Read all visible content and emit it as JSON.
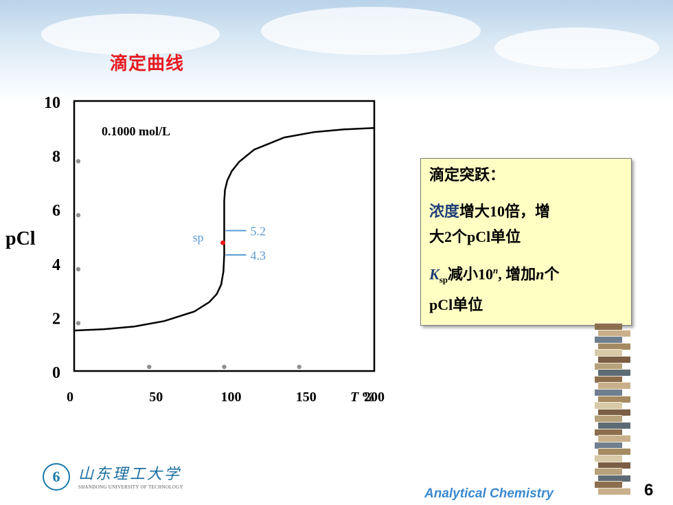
{
  "slide": {
    "title": "滴定曲线",
    "page_number": "6",
    "course": "Analytical Chemistry",
    "logo": {
      "chinese": "山东理工大学",
      "english": "SHANDONG UNIVERSITY OF TECHNOLOGY",
      "emblem": "6"
    }
  },
  "note_box": {
    "line1": "滴定突跃：",
    "line2": {
      "a": "浓度",
      "b": "增大",
      "c": "10",
      "d": "倍，增"
    },
    "line3": {
      "a": "大",
      "b": "2",
      "c": "个",
      "d": "pCl",
      "e": "单位"
    },
    "line4": {
      "k": "K",
      "sub": "sp",
      "a": "减小",
      "b": "10",
      "sup": "n",
      "c": ", ",
      "d": "增加",
      "n": "n",
      "e": "个"
    },
    "line5": {
      "a": "pCl",
      "b": "单位"
    }
  },
  "colors": {
    "title": "#e8191f",
    "note_bg": "#ffffc4",
    "note_highlight": "#1e3c78",
    "annotation": "#5b9bd5",
    "sp_point": "#e8191f",
    "footer": "#3b8ad0"
  },
  "chart_data": {
    "type": "line",
    "annotation_text": "0.1000 mol/L",
    "ylabel": "pCl",
    "xlabel_italic": "T",
    "xlabel_unit": "%",
    "x_ticks": [
      "0",
      "50",
      "100",
      "150",
      "200"
    ],
    "y_ticks": [
      "0",
      "2",
      "4",
      "6",
      "8",
      "10"
    ],
    "xlim": [
      0,
      200
    ],
    "ylim": [
      0,
      10
    ],
    "series": [
      {
        "x": [
          0,
          20,
          40,
          60,
          80,
          90,
          95,
          98,
          99.5,
          100,
          100,
          100.5,
          102,
          105,
          110,
          120,
          140,
          160,
          180,
          200
        ],
        "y": [
          1.5,
          1.55,
          1.65,
          1.85,
          2.2,
          2.55,
          2.85,
          3.2,
          3.7,
          4.3,
          6.3,
          6.7,
          7.05,
          7.4,
          7.75,
          8.2,
          8.65,
          8.85,
          8.95,
          9.0
        ]
      }
    ],
    "equivalence_point": {
      "label": "sp",
      "x": 100,
      "y": 4.75
    },
    "jump_labels": [
      {
        "text": "5.2",
        "y": 5.2
      },
      {
        "text": "4.3",
        "y": 4.3
      }
    ],
    "axis_dots": {
      "y_axis": [
        2,
        4,
        6,
        8
      ],
      "x_axis": [
        50,
        100,
        150
      ]
    }
  }
}
